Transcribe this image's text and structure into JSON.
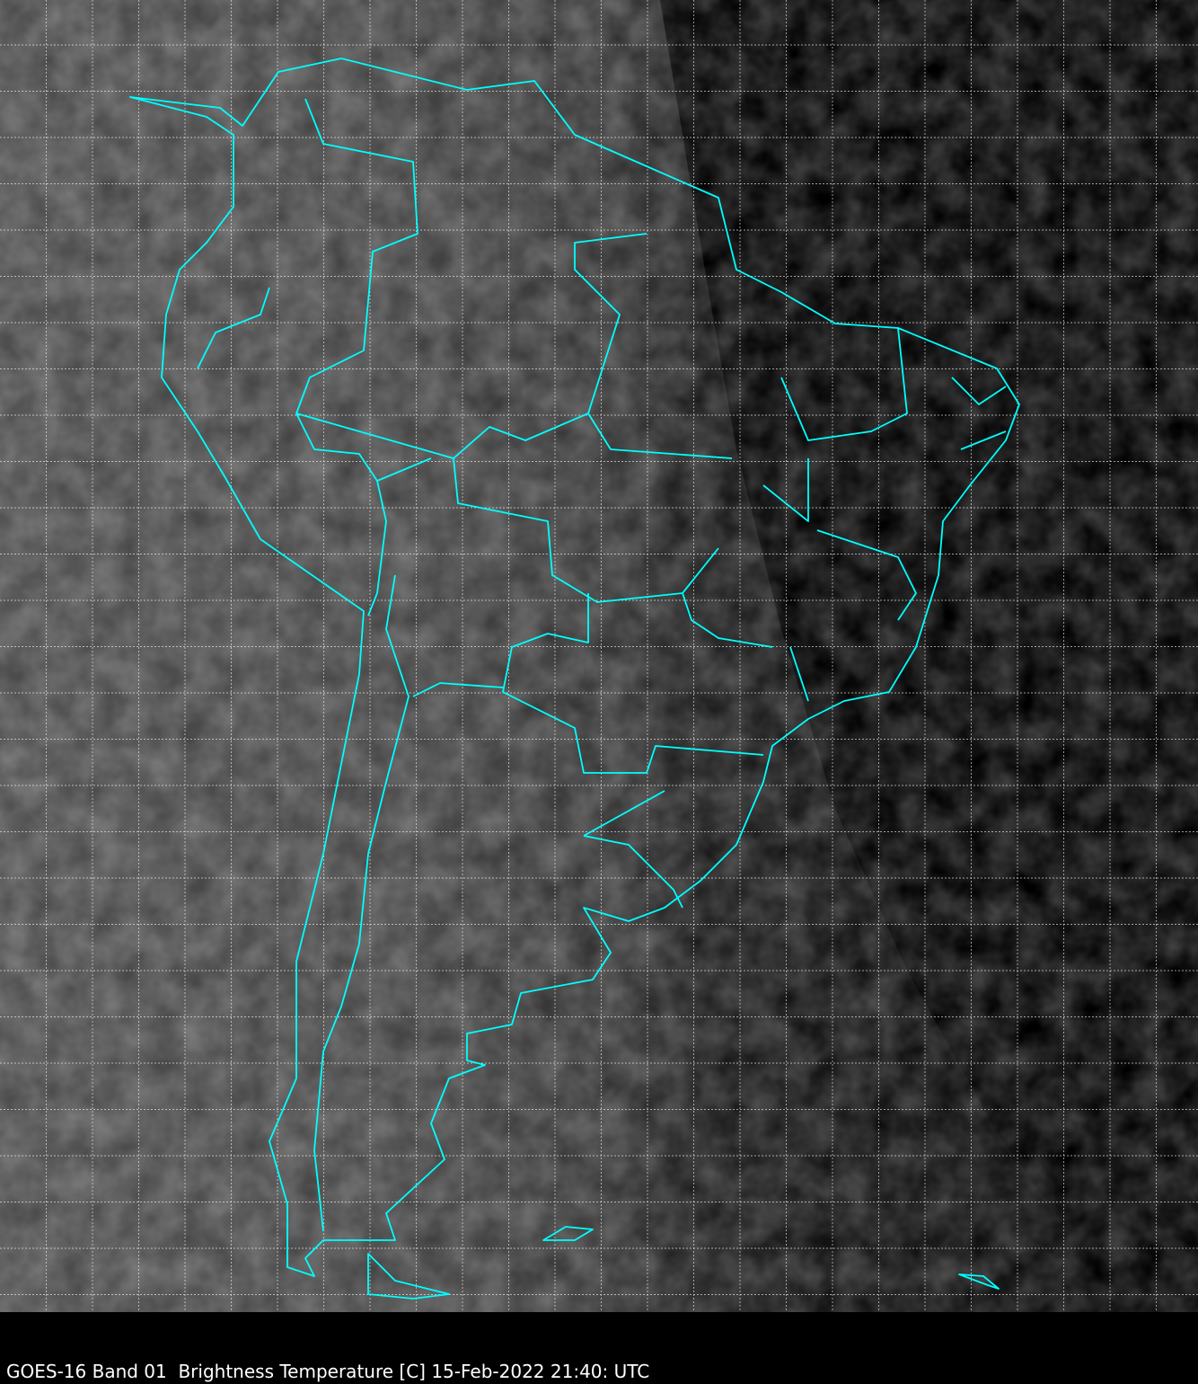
{
  "caption": "GOES-16 Band 01  Brightness Temperature [C] 15-Feb-2022 21:40: UTC",
  "colors": {
    "boundaries": "#00ffff",
    "grid": "#ffffff",
    "background": "#000000",
    "cloud_gray": "#4a4a4a"
  },
  "map": {
    "projection": "lat-lon grid",
    "grid": "dashed"
  }
}
